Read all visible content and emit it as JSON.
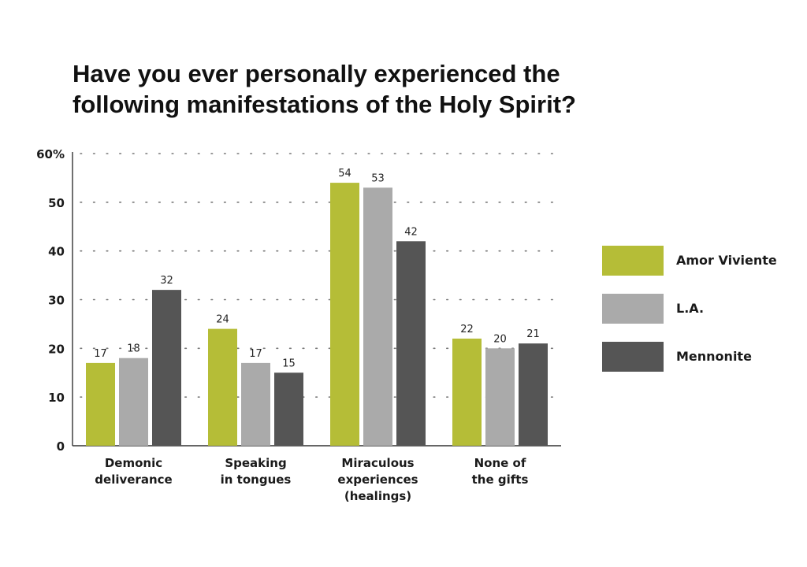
{
  "title_lines": [
    "Have you ever personally experienced the",
    "following manifestations of the Holy Spirit?"
  ],
  "chart_data": {
    "type": "bar",
    "title": "Have you ever personally experienced the following manifestations of the Holy Spirit?",
    "categories": [
      [
        "Demonic",
        "deliverance"
      ],
      [
        "Speaking",
        "in tongues"
      ],
      [
        "Miraculous",
        "experiences",
        "(healings)"
      ],
      [
        "None of",
        "the gifts"
      ]
    ],
    "series": [
      {
        "name": "Amor Viviente",
        "color": "#b5bd37",
        "values": [
          17,
          24,
          54,
          22
        ]
      },
      {
        "name": "L.A.",
        "color": "#aaaaaa",
        "values": [
          18,
          17,
          53,
          20
        ]
      },
      {
        "name": "Mennonite",
        "color": "#555555",
        "values": [
          32,
          15,
          42,
          21
        ]
      }
    ],
    "yticks": [
      "0",
      "10",
      "20",
      "30",
      "40",
      "50",
      "60%"
    ],
    "ylim": [
      0,
      60
    ],
    "grid": true,
    "legend_position": "right"
  }
}
